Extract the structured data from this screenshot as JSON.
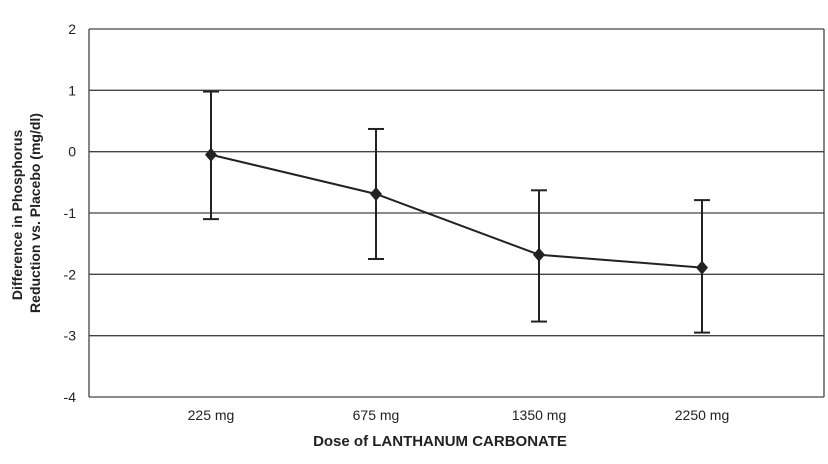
{
  "chart_data": {
    "type": "line",
    "title": "",
    "xlabel": "Dose of LANTHANUM CARBONATE",
    "ylabel_lines": [
      "Difference in Phosphorus",
      "Reduction vs. Placebo (mg/dl)"
    ],
    "categories": [
      "225 mg",
      "675 mg",
      "1350 mg",
      "2250 mg"
    ],
    "values": [
      -0.05,
      -0.69,
      -1.68,
      -1.89
    ],
    "error_upper": [
      0.98,
      0.37,
      -0.63,
      -0.79
    ],
    "error_lower": [
      -1.1,
      -1.75,
      -2.77,
      -2.95
    ],
    "ylim": [
      -4,
      2
    ],
    "yticks": [
      2,
      1,
      0,
      -1,
      -2,
      -3,
      -4
    ],
    "grid": true,
    "marker": "diamond",
    "line_color": "#222222"
  }
}
